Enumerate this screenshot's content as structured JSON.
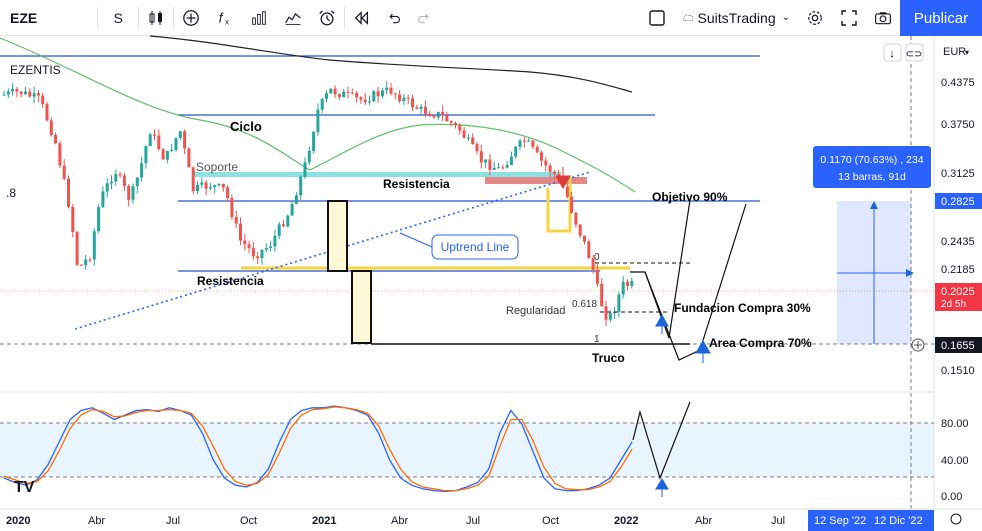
{
  "toolbar": {
    "symbol": "EZE",
    "interval": "S",
    "template_name": "SuitsTrading",
    "publish_label": "Publicar"
  },
  "legend": {
    "instrument": "EZENTIS",
    "left_value": ".8"
  },
  "currency": "EUR",
  "chart_data": {
    "type": "candlestick",
    "price_axis_ticks": [
      "0.4375",
      "0.3750",
      "0.3125",
      "0.2825",
      "0.2435",
      "0.2185",
      "0.2025",
      "0.1655",
      "0.1510"
    ],
    "price_badges": [
      {
        "value": "0.2825",
        "style": "highlight"
      },
      {
        "value": "0.2025",
        "sub": "2d 5h",
        "style": "last"
      },
      {
        "value": "0.1655",
        "style": "cross"
      }
    ],
    "time_axis_ticks": [
      "2020",
      "Abr",
      "Jul",
      "Oct",
      "2021",
      "Abr",
      "Jul",
      "Oct",
      "2022",
      "Abr",
      "Jul"
    ],
    "time_badges": [
      "12 Sep '22",
      "12 Dic '22"
    ],
    "annotations": [
      "Ciclo",
      "Soporte",
      "Resistencia",
      "Resistencia",
      "Uptrend Line",
      "Objetivo 90%",
      "Fundacion Compra 30%",
      "Area Compra 70%",
      "Regularidad",
      "Truco",
      "0",
      "0.618",
      "1"
    ],
    "measure": {
      "line1": "0.1170 (70.63%) , 234",
      "line2": "13 barras, 91d"
    },
    "oscillator": {
      "ticks": [
        "80.00",
        "40.00",
        "0.00"
      ],
      "k": [
        20,
        15,
        12,
        18,
        35,
        60,
        85,
        95,
        98,
        92,
        85,
        90,
        95,
        96,
        94,
        98,
        95,
        90,
        70,
        40,
        20,
        12,
        10,
        15,
        30,
        60,
        85,
        95,
        98,
        98,
        100,
        98,
        95,
        90,
        70,
        40,
        20,
        12,
        8,
        6,
        5,
        6,
        10,
        15,
        30,
        70,
        95,
        80,
        50,
        20,
        8,
        6,
        6,
        8,
        12,
        20,
        40,
        60
      ],
      "d": [
        22,
        18,
        14,
        16,
        28,
        50,
        75,
        90,
        96,
        94,
        88,
        89,
        93,
        95,
        95,
        96,
        95,
        92,
        78,
        55,
        30,
        16,
        12,
        14,
        24,
        48,
        75,
        90,
        96,
        97,
        99,
        98,
        96,
        92,
        78,
        52,
        30,
        16,
        10,
        8,
        6,
        6,
        8,
        12,
        22,
        55,
        85,
        85,
        62,
        32,
        14,
        8,
        7,
        7,
        10,
        16,
        32,
        52
      ]
    }
  }
}
